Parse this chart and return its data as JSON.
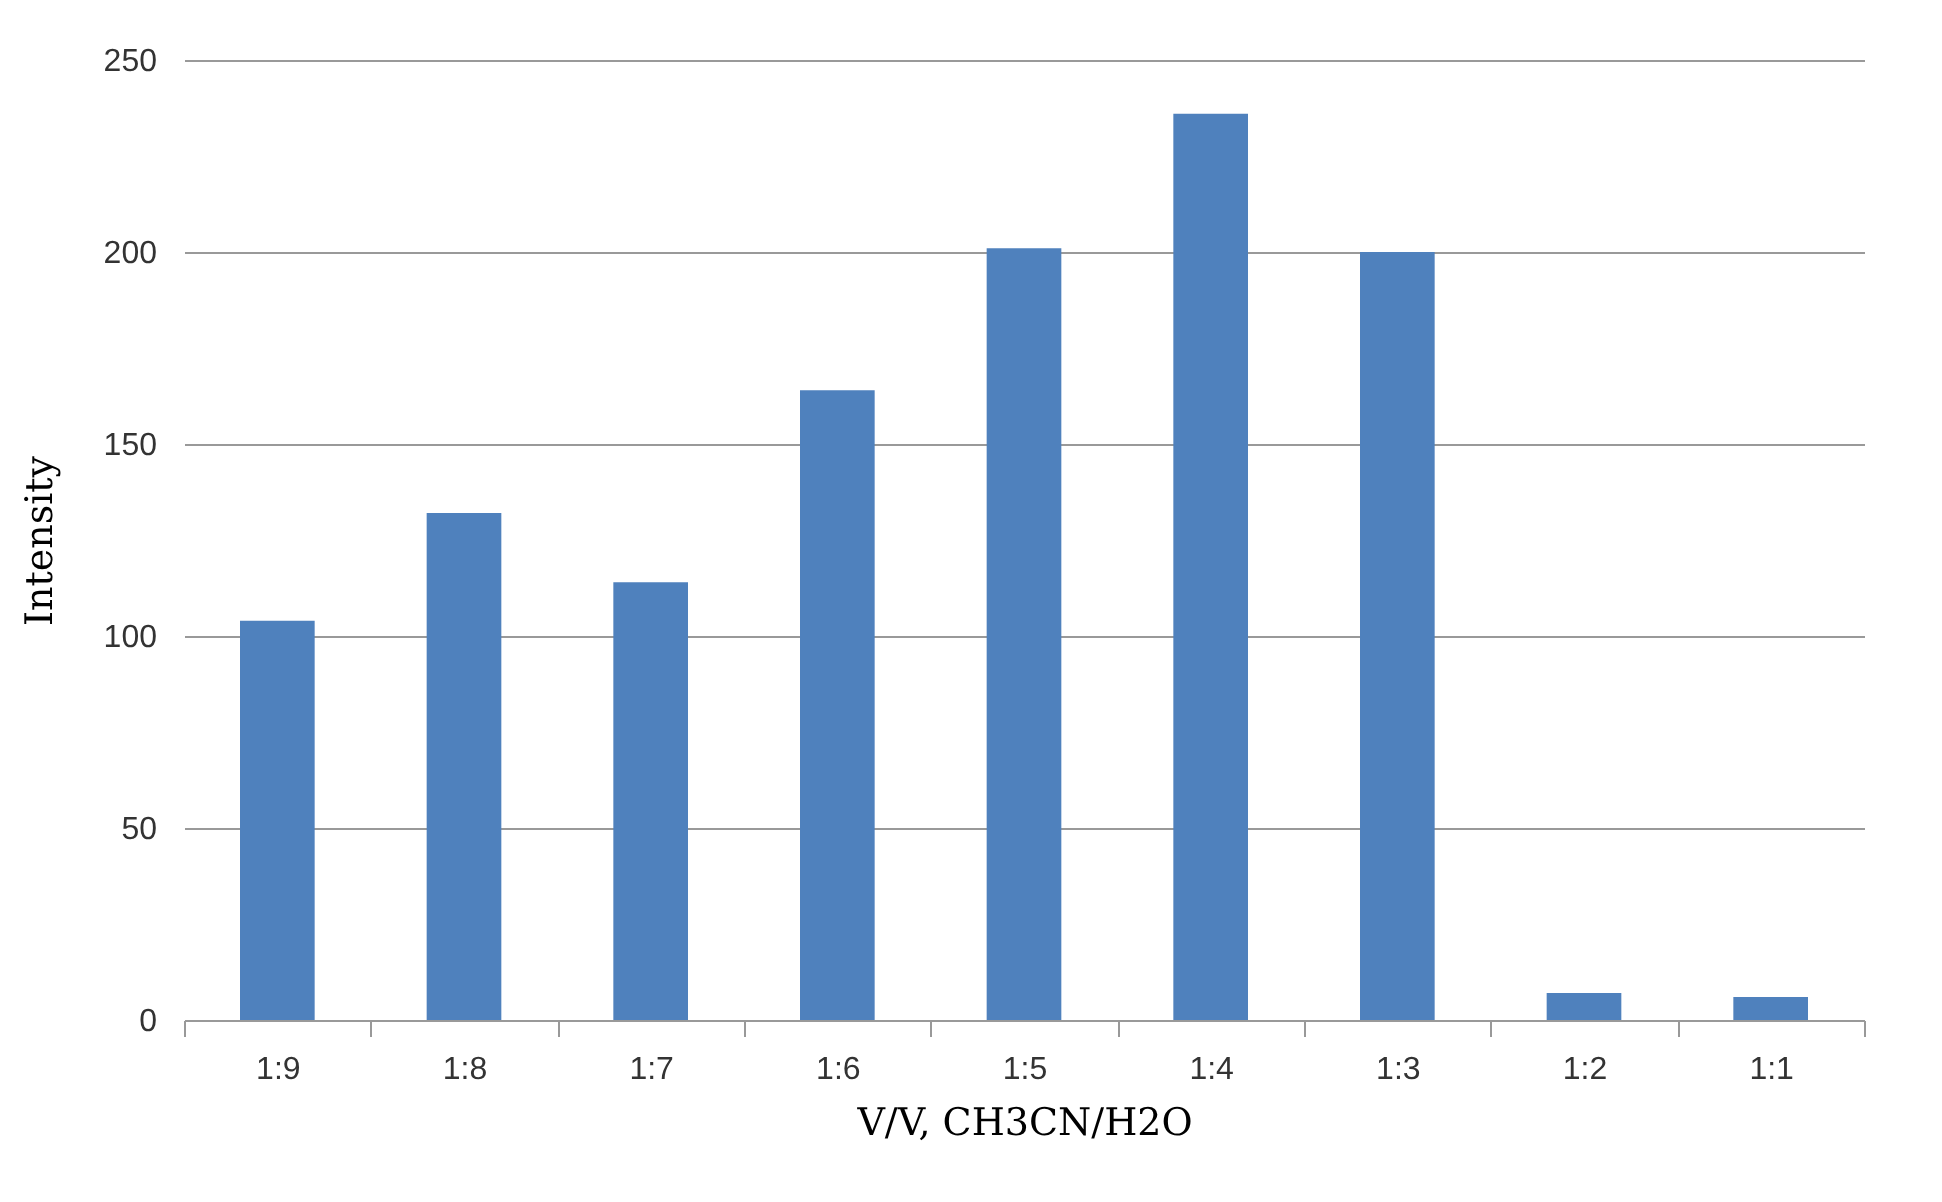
{
  "chart_data": {
    "type": "bar",
    "xlabel": "V/V, CH3CN/H2O",
    "ylabel": "Intensity",
    "categories": [
      "1:9",
      "1:8",
      "1:7",
      "1:6",
      "1:5",
      "1:4",
      "1:3",
      "1:2",
      "1:1"
    ],
    "values": [
      104,
      132,
      114,
      164,
      201,
      236,
      200,
      7,
      6
    ],
    "color": "#4f81bd",
    "ylim": [
      0,
      250
    ],
    "yticks": [
      0,
      50,
      100,
      150,
      200,
      250
    ],
    "grid": "y"
  }
}
